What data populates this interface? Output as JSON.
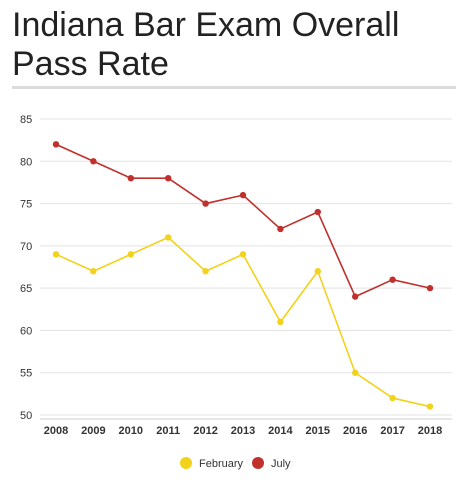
{
  "title": "Indiana Bar Exam Overall Pass Rate",
  "chart_data": {
    "type": "line",
    "title": "Indiana Bar Exam Overall Pass Rate",
    "xlabel": "",
    "ylabel": "",
    "x": [
      "2008",
      "2009",
      "2010",
      "2011",
      "2012",
      "2013",
      "2014",
      "2015",
      "2016",
      "2017",
      "2018"
    ],
    "yticks": [
      50,
      55,
      60,
      65,
      70,
      75,
      80,
      85
    ],
    "ylim": [
      50,
      85
    ],
    "grid": true,
    "legend": "bottom-center",
    "series": [
      {
        "name": "February",
        "color": "#f2d21b",
        "values": [
          69,
          67,
          69,
          71,
          67,
          69,
          61,
          67,
          55,
          52,
          51
        ]
      },
      {
        "name": "July",
        "color": "#c0302c",
        "values": [
          82,
          80,
          78,
          78,
          75,
          76,
          72,
          74,
          64,
          66,
          65
        ]
      }
    ]
  }
}
